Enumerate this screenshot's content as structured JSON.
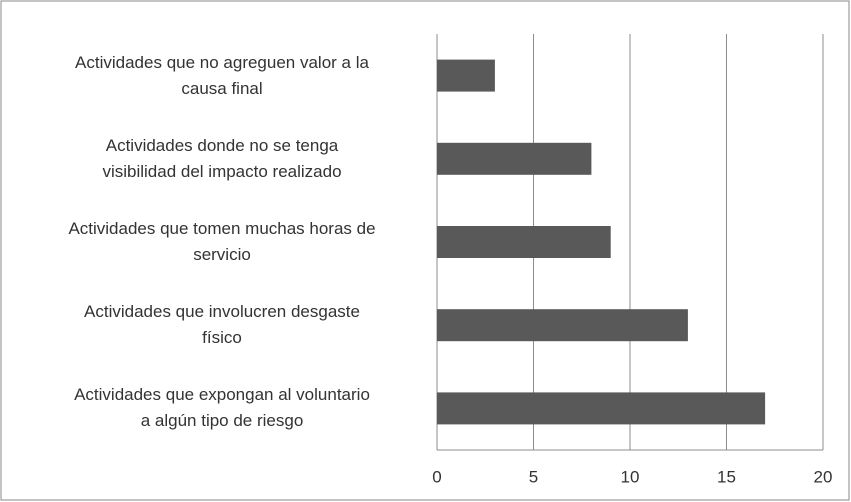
{
  "chart_data": {
    "type": "barh",
    "categories": [
      "Actividades que no agreguen valor a la\ncausa final",
      "Actividades donde no se tenga\nvisibilidad del impacto realizado",
      "Actividades que tomen muchas horas de\nservicio",
      "Actividades que involucren desgaste\nfísico",
      "Actividades que expongan al voluntario\na algún tipo de riesgo"
    ],
    "values": [
      3,
      8,
      9,
      13,
      17
    ],
    "color": "#595959",
    "xlim": [
      0,
      20
    ],
    "xticks": [
      0,
      5,
      10,
      15,
      20
    ],
    "grid": true
  }
}
